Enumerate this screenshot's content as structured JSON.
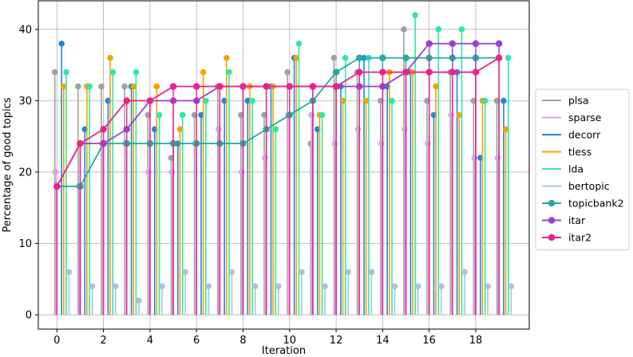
{
  "chart_data": {
    "type": "line",
    "xlabel": "Iteration",
    "ylabel": "Percentage of good topics",
    "xlim": [
      -0.8,
      20.3
    ],
    "ylim": [
      -2,
      44
    ],
    "xticks": [
      0,
      2,
      4,
      6,
      8,
      10,
      12,
      14,
      16,
      18
    ],
    "yticks": [
      0,
      10,
      20,
      30,
      40
    ],
    "grid": true,
    "legend_position": "right",
    "x": [
      0,
      1,
      2,
      3,
      4,
      5,
      6,
      7,
      8,
      9,
      10,
      11,
      12,
      13,
      14,
      15,
      16,
      17,
      18,
      19
    ],
    "stem_series": [
      {
        "name": "plsa",
        "color": "#a0a0a0",
        "offset": -0.09,
        "values": [
          34,
          32,
          32,
          32,
          28,
          22,
          28,
          32,
          28,
          28,
          34,
          24,
          36,
          34,
          30,
          40,
          30,
          34,
          30,
          30
        ]
      },
      {
        "name": "sparse",
        "color": "#dba3e3",
        "offset": -0.06,
        "values": [
          20,
          18,
          24,
          24,
          20,
          20,
          24,
          26,
          20,
          22,
          28,
          28,
          24,
          26,
          24,
          26,
          24,
          28,
          22,
          22
        ]
      },
      {
        "name": "decorr",
        "color": "#1f86e0",
        "offset": 0.2,
        "values": [
          38,
          26,
          30,
          32,
          26,
          24,
          28,
          30,
          30,
          32,
          36,
          26,
          32,
          36,
          32,
          34,
          28,
          34,
          22,
          30
        ]
      },
      {
        "name": "tless",
        "color": "#f4a300",
        "offset": 0.29,
        "values": [
          32,
          32,
          36,
          32,
          32,
          26,
          34,
          36,
          32,
          32,
          36,
          28,
          30,
          30,
          34,
          34,
          32,
          28,
          30,
          26
        ]
      },
      {
        "name": "lda",
        "color": "#2ee8a6",
        "offset": 0.4,
        "values": [
          34,
          32,
          34,
          34,
          28,
          28,
          30,
          34,
          30,
          26,
          38,
          28,
          36,
          36,
          30,
          42,
          40,
          40,
          30,
          36
        ]
      },
      {
        "name": "bertopic",
        "color": "#a8c4e0",
        "offset": 0.52,
        "values": [
          6,
          4,
          4,
          2,
          4,
          6,
          4,
          6,
          4,
          4,
          6,
          4,
          6,
          6,
          4,
          4,
          4,
          6,
          4,
          4
        ]
      }
    ],
    "line_series": [
      {
        "name": "topicbank2",
        "color": "#22aaa0",
        "values": [
          18,
          18,
          24,
          24,
          24,
          24,
          24,
          24,
          24,
          26,
          28,
          30,
          34,
          36,
          36,
          36,
          36,
          36,
          36,
          36
        ]
      },
      {
        "name": "itar",
        "color": "#9a3fd0",
        "values": [
          18,
          24,
          24,
          26,
          30,
          30,
          30,
          32,
          32,
          32,
          32,
          32,
          32,
          32,
          32,
          34,
          38,
          38,
          38,
          38
        ]
      },
      {
        "name": "itar2",
        "color": "#f0208a",
        "values": [
          18,
          24,
          26,
          30,
          30,
          32,
          32,
          32,
          32,
          32,
          32,
          32,
          32,
          34,
          34,
          34,
          34,
          34,
          34,
          36
        ]
      }
    ],
    "legend": [
      "plsa",
      "sparse",
      "decorr",
      "tless",
      "lda",
      "bertopic",
      "topicbank2",
      "itar",
      "itar2"
    ]
  }
}
